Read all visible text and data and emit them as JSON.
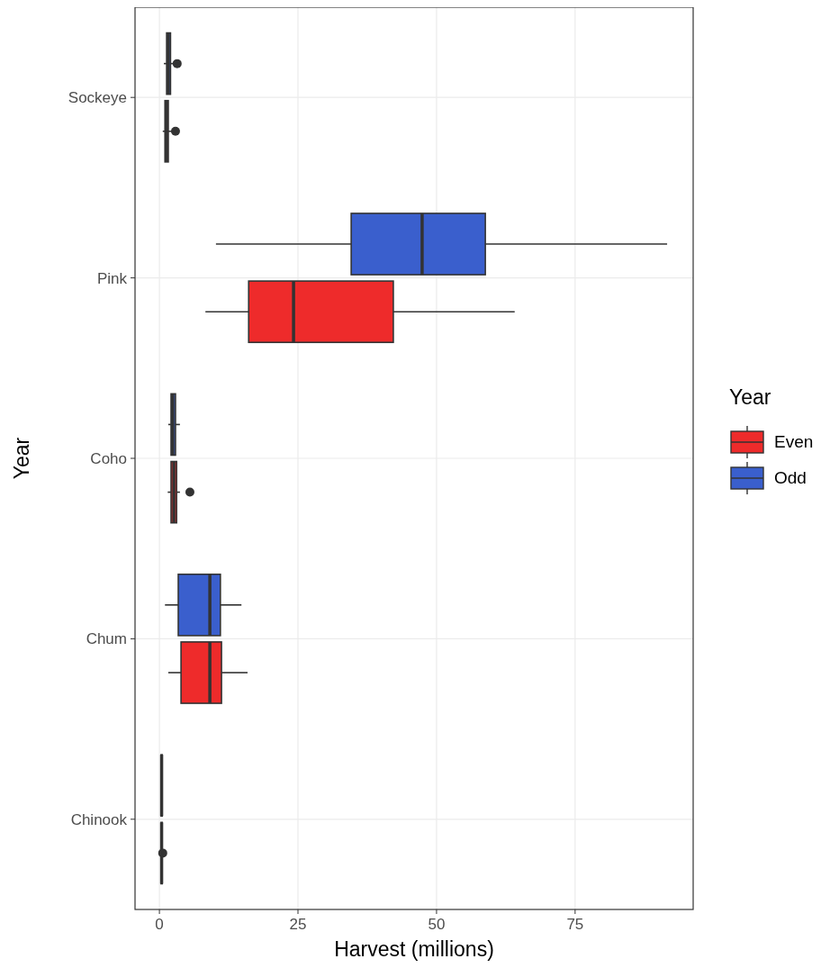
{
  "chart_data": {
    "type": "box",
    "orientation": "horizontal",
    "xlabel": "Harvest (millions)",
    "ylabel": "Year",
    "legend_title": "Year",
    "categories": [
      "Sockeye",
      "Pink",
      "Coho",
      "Chum",
      "Chinook"
    ],
    "xlim": [
      -4.4,
      96.3
    ],
    "xticks": [
      0,
      25,
      50,
      75
    ],
    "grid": true,
    "legend": "right",
    "series": [
      {
        "name": "Even",
        "color": "#ee2b2b",
        "boxes": [
          {
            "low": 0.6,
            "q1": 1.0,
            "median": 1.3,
            "q3": 1.6,
            "high": 2.3,
            "outliers": [
              2.9
            ]
          },
          {
            "low": 8.3,
            "q1": 16.1,
            "median": 24.2,
            "q3": 42.2,
            "high": 64.1
          },
          {
            "low": 1.5,
            "q1": 2.1,
            "median": 2.6,
            "q3": 3.1,
            "high": 3.7,
            "outliers": [
              5.5
            ]
          },
          {
            "low": 1.6,
            "q1": 3.9,
            "median": 9.1,
            "q3": 11.2,
            "high": 15.9
          },
          {
            "low": 0.2,
            "q1": 0.3,
            "median": 0.4,
            "q3": 0.5,
            "high": 0.6,
            "outliers": [
              0.6
            ]
          }
        ]
      },
      {
        "name": "Odd",
        "color": "#3a5fcd",
        "boxes": [
          {
            "low": 0.8,
            "q1": 1.3,
            "median": 1.6,
            "q3": 2.0,
            "high": 2.6,
            "outliers": [
              3.2
            ]
          },
          {
            "low": 10.2,
            "q1": 34.6,
            "median": 47.4,
            "q3": 58.8,
            "high": 91.6
          },
          {
            "low": 1.6,
            "q1": 2.1,
            "median": 2.4,
            "q3": 2.9,
            "high": 3.7
          },
          {
            "low": 1.0,
            "q1": 3.4,
            "median": 9.1,
            "q3": 11.0,
            "high": 14.8
          },
          {
            "low": 0.2,
            "q1": 0.3,
            "median": 0.4,
            "q3": 0.5,
            "high": 0.6
          }
        ]
      }
    ]
  }
}
